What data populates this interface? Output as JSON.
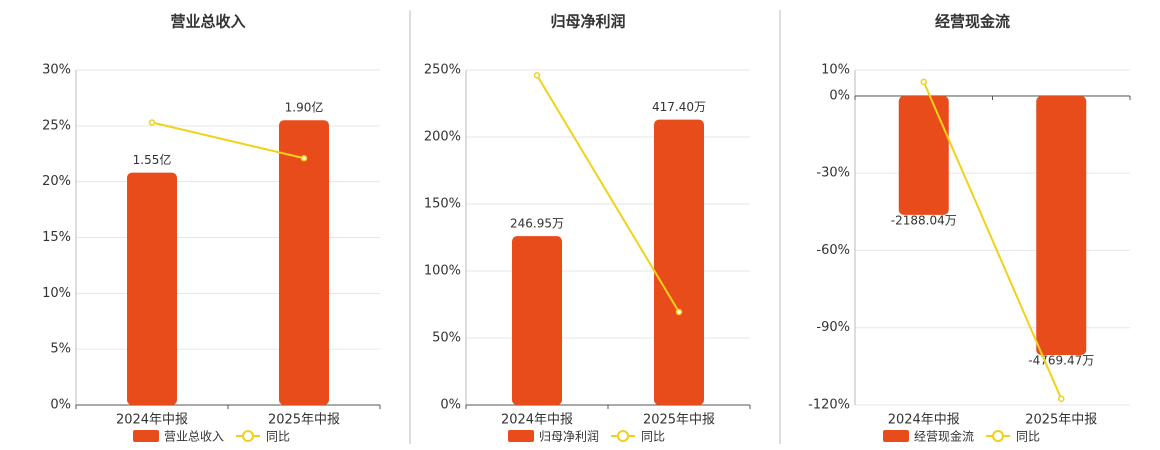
{
  "chart_data": [
    {
      "type": "bar",
      "title": "营业总收入",
      "categories": [
        "2024年中报",
        "2025年中报"
      ],
      "series": [
        {
          "name": "营业总收入",
          "color": "#e84c1b",
          "axis": "y2",
          "values": [
            1.55,
            1.9
          ],
          "value_labels": [
            "1.55亿",
            "1.90亿"
          ]
        },
        {
          "name": "同比",
          "type": "line",
          "color": "#f0d21a",
          "values": [
            25.3,
            22.1
          ]
        }
      ],
      "ylim": [
        0,
        30
      ],
      "yticks": [
        {
          "value": 0,
          "label": "0%"
        },
        {
          "value": 5,
          "label": "5%"
        },
        {
          "value": 10,
          "label": "10%"
        },
        {
          "value": 15,
          "label": "15%"
        },
        {
          "value": 20,
          "label": "20%"
        },
        {
          "value": 25,
          "label": "25%"
        },
        {
          "value": 30,
          "label": "30%"
        }
      ],
      "y2lim": [
        0,
        2.235
      ],
      "grid": true
    },
    {
      "type": "bar",
      "title": "归母净利润",
      "categories": [
        "2024年中报",
        "2025年中报"
      ],
      "series": [
        {
          "name": "归母净利润",
          "color": "#e84c1b",
          "axis": "y2",
          "values": [
            246.95,
            417.4
          ],
          "value_labels": [
            "246.95万",
            "417.40万"
          ]
        },
        {
          "name": "同比",
          "type": "line",
          "color": "#f0d21a",
          "values": [
            246,
            69.4
          ]
        }
      ],
      "ylim": [
        0,
        250
      ],
      "yticks": [
        {
          "value": 0,
          "label": "0%"
        },
        {
          "value": 50,
          "label": "50%"
        },
        {
          "value": 100,
          "label": "100%"
        },
        {
          "value": 150,
          "label": "150%"
        },
        {
          "value": 200,
          "label": "200%"
        },
        {
          "value": 250,
          "label": "250%"
        }
      ],
      "y2lim": [
        0,
        490
      ],
      "grid": true
    },
    {
      "type": "bar",
      "title": "经营现金流",
      "categories": [
        "2024年中报",
        "2025年中报"
      ],
      "series": [
        {
          "name": "经营现金流",
          "color": "#e84c1b",
          "axis": "y2",
          "values": [
            -2188.04,
            -4769.47
          ],
          "value_labels": [
            "-2188.04万",
            "-4769.47万"
          ]
        },
        {
          "name": "同比",
          "type": "line",
          "color": "#f0d21a",
          "values": [
            5.4,
            -117.6
          ]
        }
      ],
      "ylim": [
        -120,
        10
      ],
      "yticks": [
        {
          "value": 10,
          "label": "10%"
        },
        {
          "value": 0,
          "label": "0%"
        },
        {
          "value": -30,
          "label": "-30%"
        },
        {
          "value": -60,
          "label": "-60%"
        },
        {
          "value": -90,
          "label": "-90%"
        },
        {
          "value": -120,
          "label": "-120%"
        }
      ],
      "y2lim": [
        -5690,
        479
      ],
      "grid": true
    }
  ]
}
